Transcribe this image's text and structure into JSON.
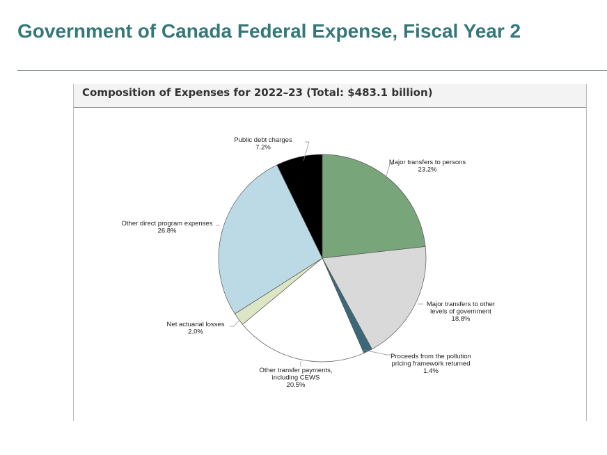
{
  "header": {
    "title": "Government of Canada Federal Expense, Fiscal Year 2"
  },
  "chart_data": {
    "type": "pie",
    "title": "Composition of Expenses for 2022–23 (Total: $483.1 billion)",
    "slices": [
      {
        "label": "Major transfers to persons",
        "lines": [
          "Major transfers to persons"
        ],
        "pct_label": "23.2%",
        "value": 23.2,
        "color": "#78a579"
      },
      {
        "label": "Major transfers to other levels of government",
        "lines": [
          "Major transfers to other",
          "levels of government"
        ],
        "pct_label": "18.8%",
        "value": 18.8,
        "color": "#d9d9d9"
      },
      {
        "label": "Proceeds from the pollution pricing framework returned",
        "lines": [
          "Proceeds from the pollution",
          "pricing framework returned"
        ],
        "pct_label": "1.4%",
        "value": 1.4,
        "color": "#3b6878"
      },
      {
        "label": "Other transfer payments, including CEWS",
        "lines": [
          "Other transfer payments,",
          "including CEWS"
        ],
        "pct_label": "20.5%",
        "value": 20.5,
        "color": "#ffffff"
      },
      {
        "label": "Net actuarial losses",
        "lines": [
          "Net actuarial losses"
        ],
        "pct_label": "2.0%",
        "value": 2.0,
        "color": "#dce6c4"
      },
      {
        "label": "Other direct program expenses",
        "lines": [
          "Other direct program expenses"
        ],
        "pct_label": "26.8%",
        "value": 26.8,
        "color": "#bcdae6"
      },
      {
        "label": "Public debt charges",
        "lines": [
          "Public debt charges"
        ],
        "pct_label": "7.2%",
        "value": 7.2,
        "color": "#000000"
      }
    ]
  }
}
